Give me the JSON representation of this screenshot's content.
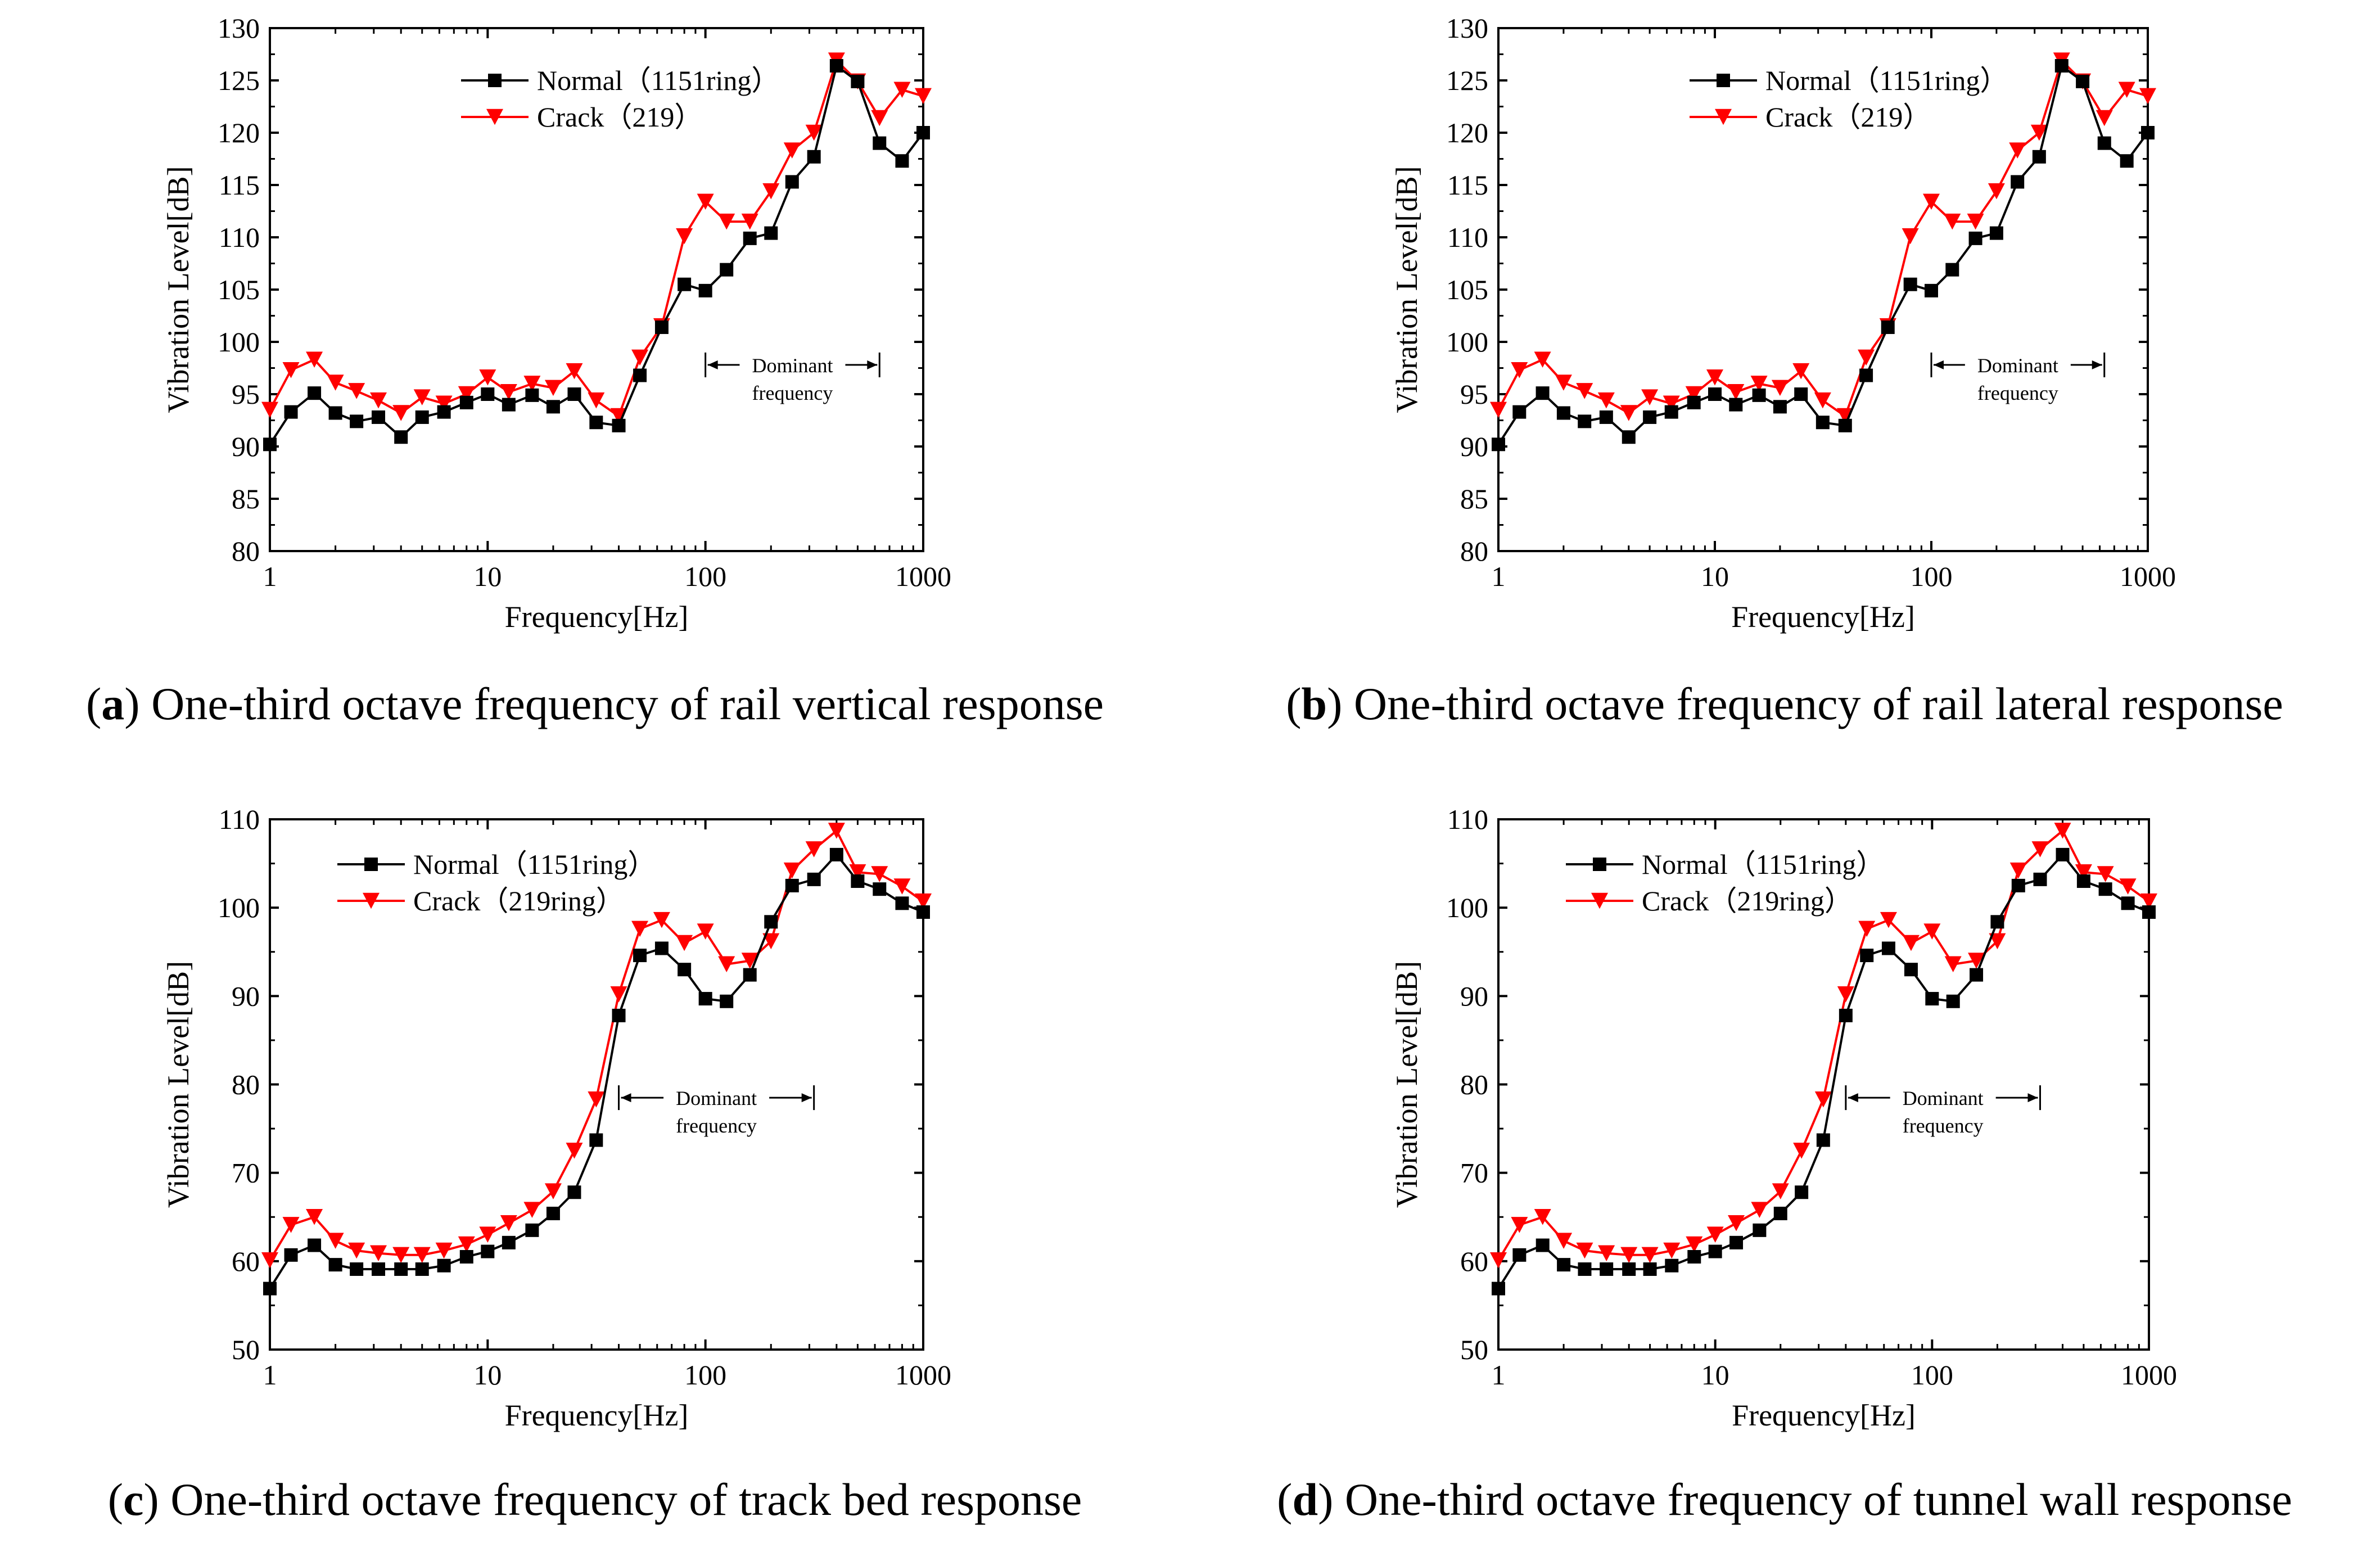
{
  "panels": [
    {
      "id": "a",
      "caption_letter": "a",
      "caption_open": "(",
      "caption_text": ") One-third octave frequency of rail vertical response",
      "chart_data": {
        "type": "line",
        "xscale": "log",
        "xlim": [
          1,
          1000
        ],
        "ylim": [
          80,
          130
        ],
        "xticks": [
          "1",
          "10",
          "100",
          "1000"
        ],
        "yticks": [
          "80",
          "85",
          "90",
          "95",
          "100",
          "105",
          "110",
          "115",
          "120",
          "125",
          "130"
        ],
        "xlabel": "Frequency[Hz]",
        "ylabel": "Vibration Level[dB]",
        "legend_position": "top-center",
        "x": [
          1,
          1.25,
          1.6,
          2,
          2.5,
          3.15,
          4,
          5,
          6.3,
          8,
          10,
          12.5,
          16,
          20,
          25,
          31.5,
          40,
          50,
          63,
          80,
          100,
          125,
          160,
          200,
          250,
          315,
          400,
          500,
          630,
          800,
          1000
        ],
        "series": [
          {
            "name": "Normal（1151ring）",
            "color": "#000000",
            "marker": "square",
            "values": [
              90.2,
              93.3,
              95.1,
              93.2,
              92.4,
              92.8,
              90.9,
              92.8,
              93.3,
              94.2,
              95.0,
              94.0,
              94.9,
              93.8,
              95.0,
              92.3,
              92.0,
              96.8,
              101.4,
              105.5,
              104.9,
              106.9,
              109.9,
              110.4,
              115.3,
              117.7,
              126.4,
              124.9,
              119.0,
              117.3,
              120.0
            ]
          },
          {
            "name": "Crack（219）",
            "color": "#ff0000",
            "marker": "triangle-down",
            "values": [
              93.5,
              97.3,
              98.3,
              96.1,
              95.3,
              94.4,
              93.2,
              94.7,
              94.1,
              95.0,
              96.6,
              95.2,
              96.0,
              95.6,
              97.2,
              94.4,
              92.9,
              98.5,
              101.5,
              110.1,
              113.4,
              111.5,
              111.5,
              114.4,
              118.3,
              120.0,
              126.9,
              124.9,
              121.4,
              124.1,
              123.5
            ]
          }
        ],
        "annotation": {
          "line1": "Dominant",
          "line2": "frequency",
          "x_range": [
            100,
            630
          ],
          "y": 97.8
        }
      }
    },
    {
      "id": "b",
      "caption_letter": "b",
      "caption_open": "(",
      "caption_text": ") One-third octave frequency of rail lateral response",
      "chart_data": {
        "type": "line",
        "xscale": "log",
        "xlim": [
          1,
          1000
        ],
        "ylim": [
          80,
          130
        ],
        "xticks": [
          "1",
          "10",
          "100",
          "1000"
        ],
        "yticks": [
          "80",
          "85",
          "90",
          "95",
          "100",
          "105",
          "110",
          "115",
          "120",
          "125",
          "130"
        ],
        "xlabel": "Frequency[Hz]",
        "ylabel": "Vibration Level[dB]",
        "legend_position": "top-center",
        "x": [
          1,
          1.25,
          1.6,
          2,
          2.5,
          3.15,
          4,
          5,
          6.3,
          8,
          10,
          12.5,
          16,
          20,
          25,
          31.5,
          40,
          50,
          63,
          80,
          100,
          125,
          160,
          200,
          250,
          315,
          400,
          500,
          630,
          800,
          1000
        ],
        "series": [
          {
            "name": "Normal（1151ring）",
            "color": "#000000",
            "marker": "square",
            "values": [
              90.2,
              93.3,
              95.1,
              93.2,
              92.4,
              92.8,
              90.9,
              92.8,
              93.3,
              94.2,
              95.0,
              94.0,
              94.9,
              93.8,
              95.0,
              92.3,
              92.0,
              96.8,
              101.4,
              105.5,
              104.9,
              106.9,
              109.9,
              110.4,
              115.3,
              117.7,
              126.4,
              124.9,
              119.0,
              117.3,
              120.0
            ]
          },
          {
            "name": "Crack（219）",
            "color": "#ff0000",
            "marker": "triangle-down",
            "values": [
              93.5,
              97.3,
              98.3,
              96.1,
              95.3,
              94.4,
              93.2,
              94.7,
              94.1,
              95.0,
              96.6,
              95.2,
              96.0,
              95.6,
              97.2,
              94.4,
              92.9,
              98.5,
              101.5,
              110.1,
              113.4,
              111.5,
              111.5,
              114.4,
              118.3,
              120.0,
              126.9,
              124.9,
              121.4,
              124.1,
              123.5
            ]
          }
        ],
        "annotation": {
          "line1": "Dominant",
          "line2": "frequency",
          "x_range": [
            100,
            630
          ],
          "y": 97.8
        }
      }
    },
    {
      "id": "c",
      "caption_letter": "c",
      "caption_open": "(",
      "caption_text": ") One-third octave frequency of track bed response",
      "chart_data": {
        "type": "line",
        "xscale": "log",
        "xlim": [
          1,
          1000
        ],
        "ylim": [
          50,
          110
        ],
        "xticks": [
          "1",
          "10",
          "100",
          "1000"
        ],
        "yticks": [
          "50",
          "60",
          "70",
          "80",
          "90",
          "100",
          "110"
        ],
        "xlabel": "Frequency[Hz]",
        "ylabel": "Vibration Level[dB]",
        "legend_position": "top-center",
        "x": [
          1,
          1.25,
          1.6,
          2,
          2.5,
          3.15,
          4,
          5,
          6.3,
          8,
          10,
          12.5,
          16,
          20,
          25,
          31.5,
          40,
          50,
          63,
          80,
          100,
          125,
          160,
          200,
          250,
          315,
          400,
          500,
          630,
          800,
          1000
        ],
        "series": [
          {
            "name": "Normal（1151ring）",
            "color": "#000000",
            "marker": "square",
            "values": [
              56.9,
              60.7,
              61.8,
              59.6,
              59.1,
              59.1,
              59.1,
              59.1,
              59.5,
              60.5,
              61.1,
              62.1,
              63.5,
              65.4,
              67.8,
              73.7,
              87.8,
              94.6,
              95.4,
              93.0,
              89.7,
              89.4,
              92.4,
              98.4,
              102.5,
              103.2,
              106.0,
              103.0,
              102.1,
              100.5,
              99.5
            ]
          },
          {
            "name": "Crack（219ring）",
            "color": "#ff0000",
            "marker": "triangle-down",
            "values": [
              60.1,
              64.1,
              65.0,
              62.3,
              61.2,
              60.9,
              60.7,
              60.7,
              61.2,
              61.9,
              63.0,
              64.3,
              65.8,
              67.9,
              72.5,
              78.3,
              90.2,
              97.6,
              98.6,
              96.0,
              97.3,
              93.6,
              94.0,
              96.2,
              104.2,
              106.6,
              108.7,
              104.0,
              103.8,
              102.4,
              100.7
            ]
          }
        ],
        "annotation": {
          "line1": "Dominant",
          "line2": "frequency",
          "x_range": [
            40,
            315
          ],
          "y": 78.5
        }
      }
    },
    {
      "id": "d",
      "caption_letter": "d",
      "caption_open": "(",
      "caption_text": ") One-third octave frequency of tunnel wall response",
      "chart_data": {
        "type": "line",
        "xscale": "log",
        "xlim": [
          1,
          1000
        ],
        "ylim": [
          50,
          110
        ],
        "xticks": [
          "1",
          "10",
          "100",
          "1000"
        ],
        "yticks": [
          "50",
          "60",
          "70",
          "80",
          "90",
          "100",
          "110"
        ],
        "xlabel": "Frequency[Hz]",
        "ylabel": "Vibration Level[dB]",
        "legend_position": "top-center",
        "x": [
          1,
          1.25,
          1.6,
          2,
          2.5,
          3.15,
          4,
          5,
          6.3,
          8,
          10,
          12.5,
          16,
          20,
          25,
          31.5,
          40,
          50,
          63,
          80,
          100,
          125,
          160,
          200,
          250,
          315,
          400,
          500,
          630,
          800,
          1000
        ],
        "series": [
          {
            "name": "Normal（1151ring）",
            "color": "#000000",
            "marker": "square",
            "values": [
              56.9,
              60.7,
              61.8,
              59.6,
              59.1,
              59.1,
              59.1,
              59.1,
              59.5,
              60.5,
              61.1,
              62.1,
              63.5,
              65.4,
              67.8,
              73.7,
              87.8,
              94.6,
              95.4,
              93.0,
              89.7,
              89.4,
              92.4,
              98.4,
              102.5,
              103.2,
              106.0,
              103.0,
              102.1,
              100.5,
              99.5
            ]
          },
          {
            "name": "Crack（219ring）",
            "color": "#ff0000",
            "marker": "triangle-down",
            "values": [
              60.1,
              64.1,
              65.0,
              62.3,
              61.2,
              60.9,
              60.7,
              60.7,
              61.2,
              61.9,
              63.0,
              64.3,
              65.8,
              67.9,
              72.5,
              78.3,
              90.2,
              97.6,
              98.6,
              96.0,
              97.3,
              93.6,
              94.0,
              96.2,
              104.2,
              106.6,
              108.7,
              104.0,
              103.8,
              102.4,
              100.7
            ]
          }
        ],
        "annotation": {
          "line1": "Dominant",
          "line2": "frequency",
          "x_range": [
            40,
            315
          ],
          "y": 78.5
        }
      }
    }
  ]
}
